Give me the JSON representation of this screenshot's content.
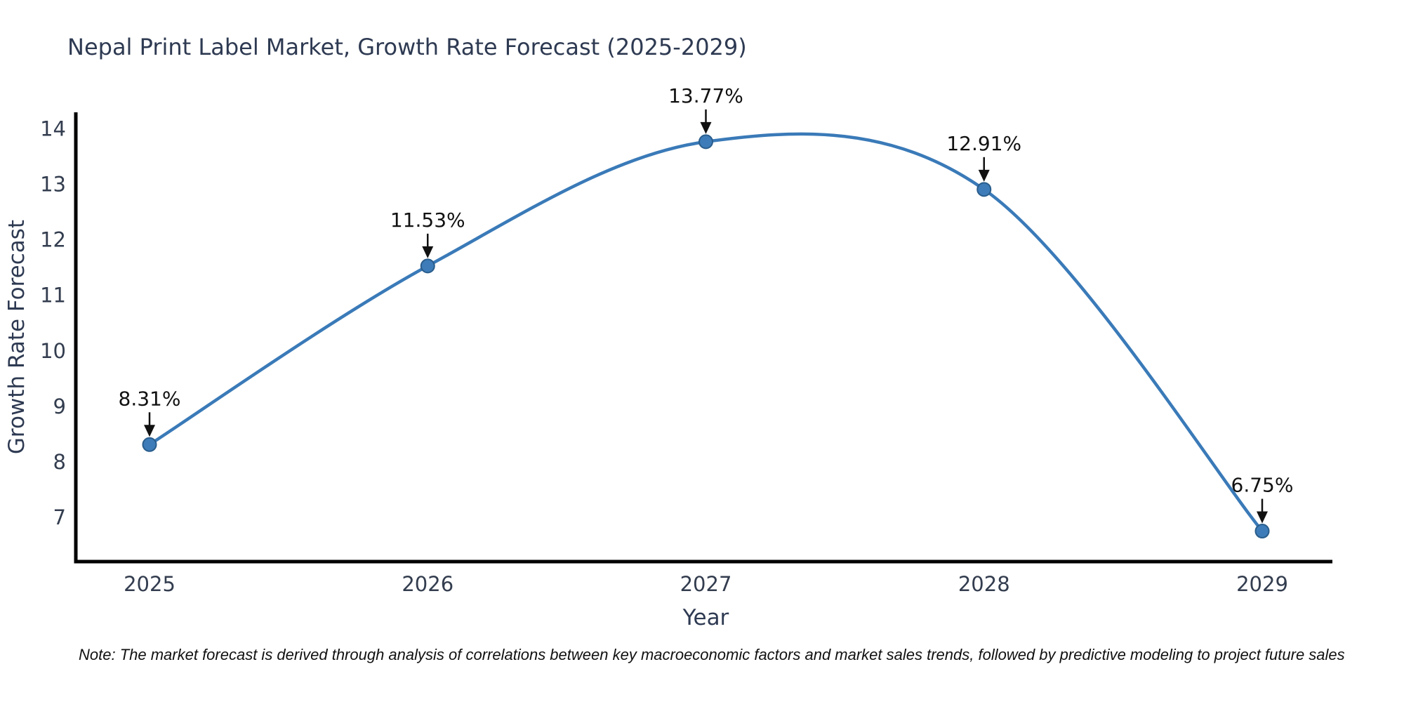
{
  "chart_data": {
    "type": "line",
    "title": "Nepal Print Label Market, Growth Rate Forecast (2025-2029)",
    "xlabel": "Year",
    "ylabel": "Growth Rate Forecast",
    "x": [
      "2025",
      "2026",
      "2027",
      "2028",
      "2029"
    ],
    "series": [
      {
        "name": "Growth Rate Forecast",
        "values": [
          8.31,
          11.53,
          13.77,
          12.91,
          6.75
        ]
      }
    ],
    "point_labels": [
      "8.31%",
      "11.53%",
      "13.77%",
      "12.91%",
      "6.75%"
    ],
    "yticks": [
      7,
      8,
      9,
      10,
      11,
      12,
      13,
      14
    ],
    "ylim": [
      6.2,
      14.3
    ],
    "grid": false,
    "legend": "none",
    "line_shape": "spline",
    "colors": {
      "line": "#3a7ab8",
      "marker_fill": "#3d7cb8",
      "marker_edge": "#2a5d8c",
      "axis": "#000000",
      "title": "#2e3a52",
      "tick": "#333d4f",
      "annotation": "#111111"
    }
  },
  "note": "Note: The market forecast is derived through analysis of correlations between key macroeconomic factors and market sales trends, followed by predictive modeling to project future sales"
}
